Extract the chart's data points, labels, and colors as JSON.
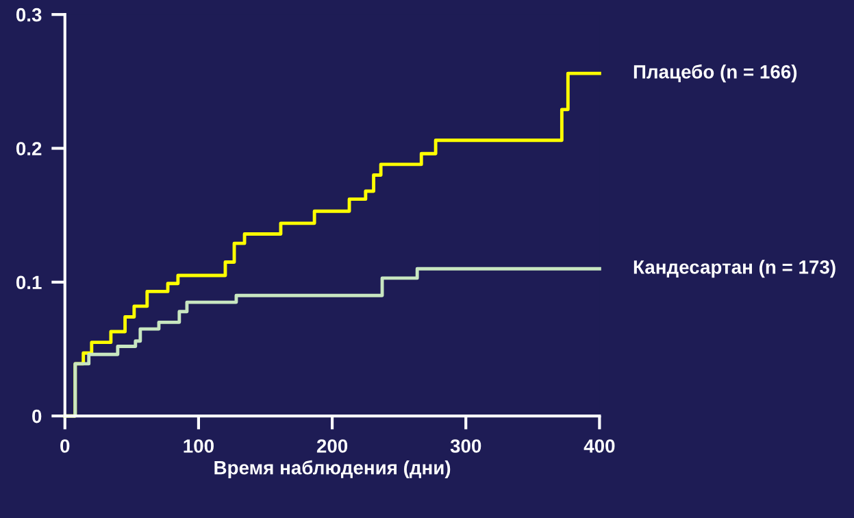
{
  "chart_data": {
    "type": "step",
    "xlabel": "Время наблюдения (дни)",
    "xlim": [
      0,
      400
    ],
    "xticks": [
      0,
      100,
      200,
      300,
      400
    ],
    "ylim": [
      0,
      0.3
    ],
    "yticks": [
      0,
      0.1,
      0.2,
      0.3
    ],
    "grid": false,
    "legend": false,
    "series": [
      {
        "name": "Плацебо (n = 166)",
        "color": "#ffff00",
        "x": [
          0,
          7.7,
          13.8,
          20,
          34.4,
          45,
          51.8,
          61.5,
          77,
          84.6,
          120,
          126.7,
          134.4,
          161.5,
          186.7,
          212.8,
          225,
          231,
          236.4,
          266.7,
          277.4,
          371.8,
          376.4,
          400
        ],
        "values": [
          0,
          0.039,
          0.047,
          0.055,
          0.063,
          0.074,
          0.082,
          0.093,
          0.099,
          0.105,
          0.115,
          0.129,
          0.136,
          0.144,
          0.153,
          0.162,
          0.168,
          0.18,
          0.188,
          0.196,
          0.206,
          0.229,
          0.256,
          0.256
        ]
      },
      {
        "name": "Кандесартан (n = 173)",
        "color": "#c8e6c0",
        "x": [
          0,
          7.7,
          17.9,
          39.5,
          52.8,
          56.4,
          70.3,
          85.6,
          91.3,
          128.2,
          237.4,
          263.6,
          400
        ],
        "values": [
          0,
          0.039,
          0.046,
          0.052,
          0.056,
          0.065,
          0.07,
          0.078,
          0.085,
          0.09,
          0.103,
          0.11,
          0.11
        ]
      }
    ]
  }
}
